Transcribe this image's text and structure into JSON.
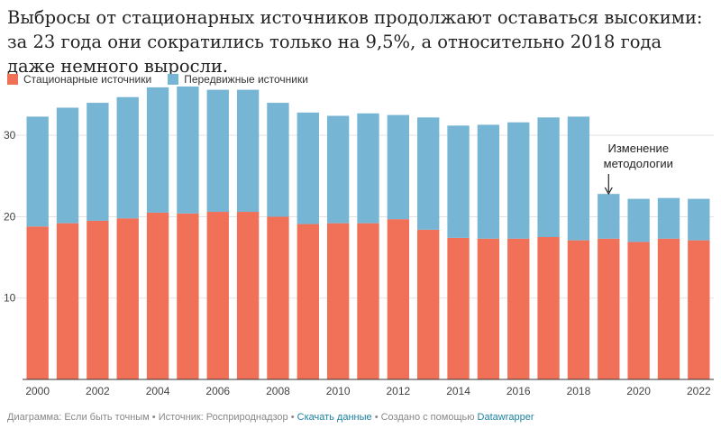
{
  "title": "Выбросы от стационарных источников продолжают оставаться высокими: за 23 года они сократились только на 9,5%, а относительно 2018 года даже немного выросли.",
  "colors": {
    "stationary": "#f07058",
    "mobile": "#77b5d4",
    "grid": "#e3e3e3",
    "axis": "#333333"
  },
  "legend": {
    "stationary": "Стационарные источники",
    "mobile": "Передвижные источники"
  },
  "annotation": {
    "line1": "Изменение",
    "line2": "методологии",
    "arrow_icon": "down-arrow-icon",
    "year": 2019
  },
  "footer": {
    "prefix": "Диаграмма: Если быть точным • Источник: Росприроднадзор • ",
    "download": "Скачать данные",
    "middle": " • Создано с помощью ",
    "tool": "Datawrapper"
  },
  "chart_data": {
    "type": "bar",
    "stacked": true,
    "categories": [
      2000,
      2001,
      2002,
      2003,
      2004,
      2005,
      2006,
      2007,
      2008,
      2009,
      2010,
      2011,
      2012,
      2013,
      2014,
      2015,
      2016,
      2017,
      2018,
      2019,
      2020,
      2021,
      2022
    ],
    "series": [
      {
        "name": "Стационарные источники",
        "color": "#f07058",
        "values": [
          18.8,
          19.2,
          19.5,
          19.8,
          20.5,
          20.4,
          20.6,
          20.6,
          20.0,
          19.1,
          19.2,
          19.2,
          19.7,
          18.4,
          17.4,
          17.3,
          17.3,
          17.5,
          17.1,
          17.3,
          16.9,
          17.3,
          17.1
        ]
      },
      {
        "name": "Передвижные источники",
        "color": "#77b5d4",
        "values": [
          13.5,
          14.2,
          14.5,
          14.9,
          15.4,
          15.6,
          15.0,
          15.0,
          14.0,
          13.7,
          13.2,
          13.5,
          12.8,
          13.8,
          13.8,
          14.0,
          14.3,
          14.7,
          15.2,
          5.5,
          5.3,
          5.0,
          5.1
        ]
      }
    ],
    "ylim": [
      0,
      36
    ],
    "yticks": [
      10,
      20,
      30
    ],
    "xticks": [
      2000,
      2002,
      2004,
      2006,
      2008,
      2010,
      2012,
      2014,
      2016,
      2018,
      2020,
      2022
    ],
    "grid": true,
    "legend_position": "top-left"
  }
}
